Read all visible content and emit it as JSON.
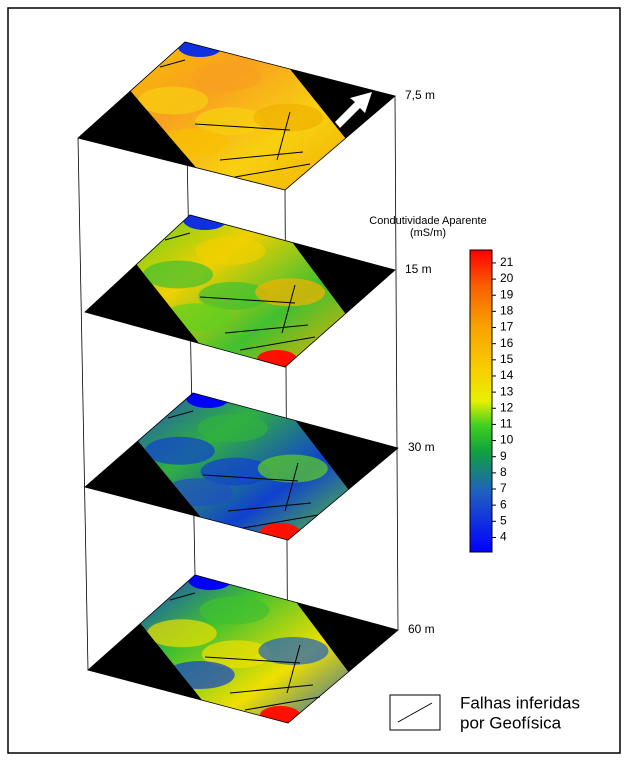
{
  "layers": [
    {
      "label": "7,5 m"
    },
    {
      "label": "15 m"
    },
    {
      "label": "30 m"
    },
    {
      "label": "60 m"
    }
  ],
  "colorbar": {
    "title": "Condutividade Aparente",
    "unit": "(mS/m)",
    "range": [
      3.1,
      21.8
    ],
    "ticks": [
      4,
      5,
      6,
      7,
      8,
      9,
      10,
      11,
      12,
      13,
      14,
      15,
      16,
      17,
      18,
      19,
      20,
      21
    ]
  },
  "legend": {
    "line1": "Falhas inferidas",
    "line2": "por Geofísica"
  }
}
